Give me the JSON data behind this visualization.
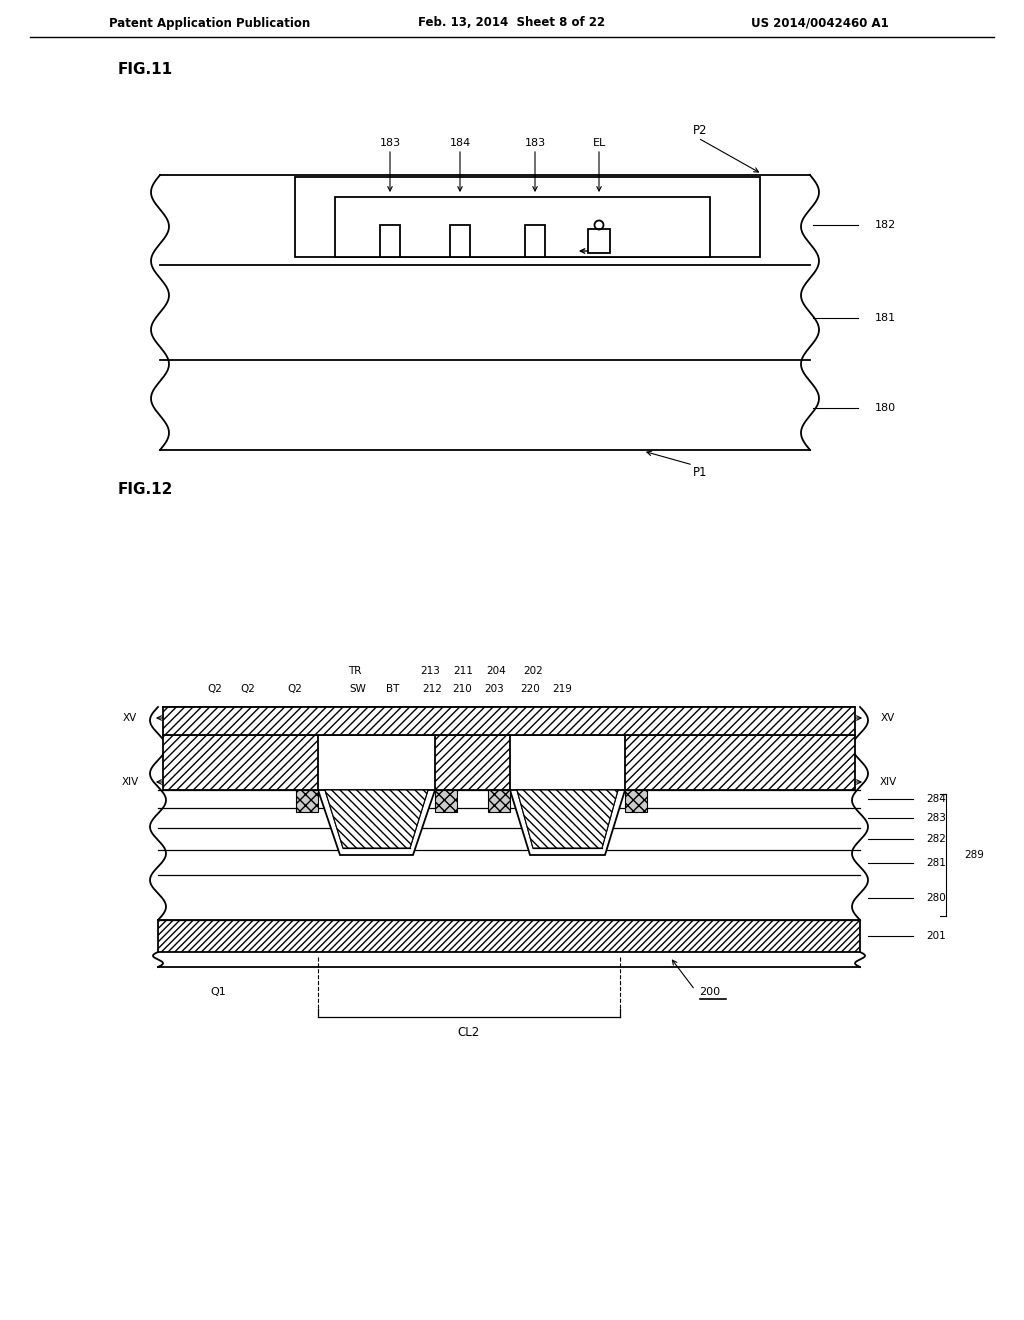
{
  "header_left": "Patent Application Publication",
  "header_center": "Feb. 13, 2014  Sheet 8 of 22",
  "header_right": "US 2014/0042460 A1",
  "bg_color": "#ffffff",
  "line_color": "#000000"
}
